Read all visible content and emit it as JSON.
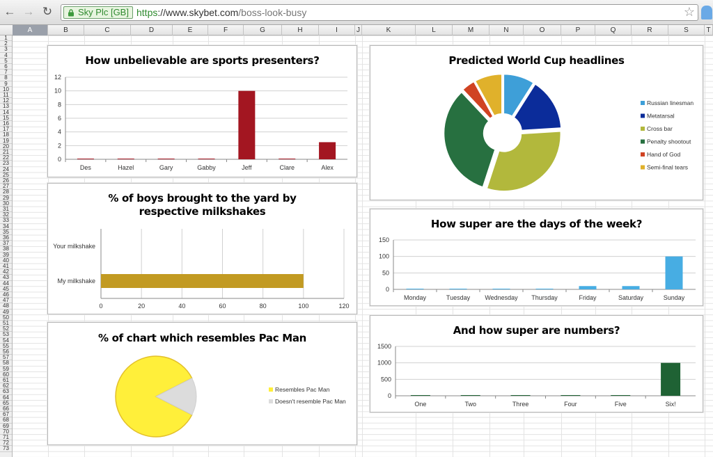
{
  "browser": {
    "cert_label": "Sky Plc [GB]",
    "url_scheme": "https",
    "url_host": "://www.skybet.com",
    "url_path": "/boss-look-busy"
  },
  "spreadsheet": {
    "columns": [
      "A",
      "B",
      "C",
      "D",
      "E",
      "F",
      "G",
      "H",
      "I",
      "J",
      "K",
      "L",
      "M",
      "N",
      "O",
      "P",
      "Q",
      "R",
      "S",
      "T"
    ]
  },
  "chart_data": [
    {
      "type": "bar",
      "title": "How unbelievable are sports presenters?",
      "categories": [
        "Des",
        "Hazel",
        "Gary",
        "Gabby",
        "Jeff",
        "Clare",
        "Alex"
      ],
      "values": [
        0,
        0,
        0,
        0,
        10,
        0,
        2.5
      ],
      "ylim": [
        0,
        12
      ],
      "yticks": [
        0,
        2,
        4,
        6,
        8,
        10,
        12
      ],
      "color": "#a31621",
      "grid": true
    },
    {
      "type": "bar",
      "orientation": "horizontal",
      "title": "% of boys brought to the yard by respective milkshakes",
      "categories": [
        "Your milkshake",
        "My milkshake"
      ],
      "values": [
        0,
        100
      ],
      "xlim": [
        0,
        120
      ],
      "xticks": [
        0,
        20,
        40,
        60,
        80,
        100,
        120
      ],
      "color": "#c29a22",
      "grid": true
    },
    {
      "type": "pie",
      "title": "% of chart which resembles Pac Man",
      "labels": [
        "Resembles Pac Man",
        "Doesn't resemble Pac Man"
      ],
      "values": [
        85,
        15
      ],
      "colors": [
        "#ffef3a",
        "#dcdcdc"
      ],
      "legend": "right"
    },
    {
      "type": "pie",
      "title": "Predicted World Cup headlines",
      "labels": [
        "Russian linesman",
        "Metatarsal",
        "Cross bar",
        "Penalty shootout",
        "Hand of God",
        "Semi-final tears"
      ],
      "values": [
        9,
        15,
        31,
        33,
        4,
        8
      ],
      "colors": [
        "#3e9fd8",
        "#0b2c9a",
        "#b2b83c",
        "#277040",
        "#d04322",
        "#e0b12b"
      ],
      "legend": "right"
    },
    {
      "type": "bar",
      "title": "How super are the days of the week?",
      "categories": [
        "Monday",
        "Tuesday",
        "Wednesday",
        "Thursday",
        "Friday",
        "Saturday",
        "Sunday"
      ],
      "values": [
        1,
        1,
        1,
        1,
        10,
        10,
        100
      ],
      "ylim": [
        0,
        150
      ],
      "yticks": [
        0,
        50,
        100,
        150
      ],
      "color": "#47ade3",
      "grid": true
    },
    {
      "type": "bar",
      "title": "And how super are numbers?",
      "categories": [
        "One",
        "Two",
        "Three",
        "Four",
        "Five",
        "Six!"
      ],
      "values": [
        0,
        0,
        0,
        0,
        0,
        1000
      ],
      "ylim": [
        0,
        1500
      ],
      "yticks": [
        0,
        500,
        1000,
        1500
      ],
      "color": "#1f6234",
      "grid": true
    }
  ]
}
